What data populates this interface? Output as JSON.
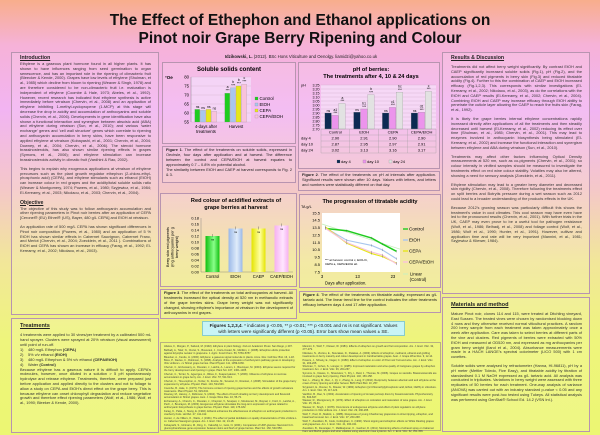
{
  "title": [
    "The Effect of Ethephon and Ethanol applications on",
    "Pinot noir Grape Berry Ripening and Colour"
  ],
  "author": {
    "name": "Idzikowski, L.",
    "rest": " (2012). BSc Hons Viticulture and Oenolgy. liamidzi@yahoo.co.uk"
  },
  "introduction": {
    "heading": "Introduction",
    "paragraphs": [
      "Ethylene is a gaseous plant hormone found in all higher plants. It has shown to have influences ranging from seed germination to organ senescence, and has an important role in the ripening of climacteric fruit (Bleecker & Kende, 2000). Grapes have low levels of ethylene (Shulman, et al., 1985) which decline from bloom to ripening (Weaver & Singh, 1978) and are therefore considered to be non-climacteric fruit i.e. maturation is independent of ethylene (Coombe & Hale, 1973; Abeles, et al., 1992). However, recent research has indicated that ethylene synthesis is active immediately before véraison (Chervin, et al., 2008) and an application of ethylene inhibiting 1-methyl-cyclopropene (1-MCP) at this stage will decrease the drop in acidity and accumulation of anthocyanins and soluble solids (Chervin, et al., 2006). Developments in gene identification have also shown a functional interaction and synergism between abscisic acid (ABA) and ethylene during véraison (Sun, et al., 2010); and various 'water exchange' genes and 'cell wall structure' genes which correlate to ripening and anthocyanin accumulation in berry skins, have been responsive to applied ethylene at véraison (Kobayashi, et al., 2001; Chervin, et al., 2004; Downey, et al., 2004; Chervin, et al., 2006). The steroid hormone brassinosteroids, has also shown similar ripening effects in grapes (Symons, et al., 2006); and ethylene stimulation can increase brassinosteroids activity in climatic fruit (Vardhini & Rao, 2002).",
      "This begins to explain why exogenous applications at véraison of ethylene precursors such as the plant growth regulator ethephon (2-chloro-ethyl-phosphonic acid) (CEPA), and ethylene stimulants such as ethanol (EtOH) can increase colour in red grapes and the acidity/total soluble solids ratio (Weaver & Montgomery, 1974; Powers, et al., 1980; Szyjewicz, et al., 1984; El-Kereamy, et al., 2003; Nikolaou, et al., 2003; Chervin, et al., 2004)."
    ]
  },
  "objective": {
    "heading": "Objective",
    "paragraphs": [
      "The objective of this study was to follow anthocyanin accumulation and other ripening parameters in Pinot noir berries after an application of CEPA [Ceronel® (EU) Ethrel® (US), Bayer, 480 g/L CEPA] and EtOH at véraison.",
      "An application rate of 500 mg/L CEPA has shown significant differences in Pinot noir composition (Powers, et al., 1980) and an application of 5 % EtOH has shown similar effects in Cabernet Sauvignon, Cabernet Franc, and Merlot (Chervin, et al., 2004; Zoecklein, et al., 2011 ). Combinations of EtOH and CEPA has shown an increase in efficacy (Farag, et al., 1992; El-Kereamy, et al., 2002; Nikolaou, et al., 2003)."
    ]
  },
  "treatments": {
    "heading": "Treatments",
    "intro": "4 treatments were applied to 30 vines/per treatment by a calibrated 500 mL hand sprayer. Clusters were sprayed at 20% véraison (visual assessment) until point of run-off.",
    "items": [
      {
        "n": "1)",
        "text": "480 mg/L Ethephon ",
        "bold": "(CEPA)"
      },
      {
        "n": "2)",
        "text": "5% v/v ethanol ",
        "bold": "(EtOH)"
      },
      {
        "n": "3)",
        "text": "480 mg/L Ethephon & 5% v/v ethanol ",
        "bold": "(CEPA/EtOH)"
      },
      {
        "n": "4)",
        "text": "Water ",
        "bold": "(Control)"
      }
    ],
    "outro": "Because ethylene has a gaseous nature it is difficult to apply. CEPA's molecules, however, once diluted in a solution > 5 pH spontaneously hydrolyse and release ethylene. Treatments, therefore, were prepared just before application and applied directly to the clusters and not to foliage to allow a study on CEPA and EtOH's direct effect on the grape berry. This is because ethylene can onset chlorophyll degradation and reduce vegetative growth and therefore effect ripening parameters (Wolf, et al., 1986; Wolf, et al., 1990; Bleeker & Kende, 2000)."
  },
  "results": {
    "heading": "Results & Discussion",
    "paragraphs": [
      "Treatments did not affect berry weight significantly. By contrast EtOH and CAEP significantly increased soluble solids (Fig.1), pH (Fig.2), and the accumulation of red pigments in berry skin (Fig.3) and reduced titratable acidity (Fig.4). Further to this the combination of CAEP and EtOH increased efficacy (Fig.1,2,3). This corresponds with similar investigations (El-Kereamy, et al., 2002; Nikolaou, et al., 2003), as do the correlations with the EtOH and CAEP results (El-Kereamy, et al., 2002; Chervin, et al., 2004). Combining EtOH and CAEP may increase efficacy through EtOH ability to penetrate the cuticle layer allowing the CAEP to reach the fruits skin (Farag, et al., 1992).",
      "It is likely the grape berries internal ethylene concentrations rapidly increased directly after applications of all the treatments and then steadily decreased until harvest (El-Kereamy, et al., 2002) reducing its effect over time (Shulman, et al., 1985; Chervin, et al., 2001). This may lead to enzymes involved in anthocyanin biosynthesis being stimulated (El-Kereamy, et al., 2002) and increase the functional interaction and synergism between ethylene and ABA during véraison (Sun, et al., 2010).",
      "Treatments may affect other factors influencing Optical Density measurements at 520 nm, such as co-pigments (Chervin, et al., 2001); so colour intensity in vinified samples should be measured to investigate the treatments effect on red wine colour stability. Volatiles may also be altered, showing a need for sensory analysis (Zoecklein, et al., 2011).",
      "Ethylene stimulation may lead to a greater berry diameter and decreased skin rigidity (Chervin, et al., 2008). Therefore following the treatments effect on split berries and Botrytis pressure during a wet season such as 2012 could lead to a broader understanding of the products effects in the UK.",
      "Because 2012's growing season was particularly difficult this shows the treatment's value in cool climates. This cool season may have even have led to the pronounced results (Chervin, et al., 2001). With further trials in the UK, CAEP may even prove to be a useful tool for pathogen resistance (Wolf, et al., 1986; Belhadj, et al., 2008) and foliage control (Wolf, et al., 1986; Wolf et al., 1990; Hunter, et al., 1991). However, cultivar and application time and rate will be very important (Mannini, et al., 1981; Szyjewicz & Kliewer, 1984)."
    ]
  },
  "materials": {
    "heading": "Materials and method",
    "paragraphs": [
      "Mature Pinot noir, clones 114 and 115, were treated at Ditchling vineyard, East Sussex. The treated vines were chosen by randomised blocking down 4 rows and they otherwise received normal viticultural practices. A random 200 berry sample from each treatment was taken approximately once a week after application. Care was taken to select berries at different parts of the vine and clusters. Red pigments of berries were extracted with 50% EtOH and measured at OD520 nm, and expressed as mg anthocyanins per gram berry weight (Iland et al., 2004). Absorbance measurements were made in a HACH LANGE's spectral colorimeter (LICO 500) with 1 cm cuvettes.",
      "Soluble solids were analysed by refractometer (Hanna, HI-96811), pH by a pH meter (Mettler Toledo, Five Easy), and titratable acidity by titration of standardised 0.1 M NaOH expressed as g/L tartaric acid. All analysis was conducted in triplicates. Variations in berry weight were assessed with three replicates of 50 berries for each treatment. One-way analysis of variance (ANOVA) was carried out with an industry standard p-value < 0.05 and any significant results were post-hoc tested using Tukeys. All statistical analysis was performed using GenStat® School Ed. 14.2 (VSN Int.)."
    ]
  },
  "captions": {
    "fig1": {
      "label": "Figure 1",
      "text": ". The effect of the treatments on soluble solids, expressed in Oechsle, four days after application and at harvest. The difference between the control and CEPA/EtOH at harvest equates to approximately 0.7 – 0.8% v/v potential alcohol.",
      "text2": "The similarity between EtOH and CAEP at harvest corresponds to Fig. 2 & 3."
    },
    "fig2": {
      "label": "Figure 2",
      "text": ". The effect of the treatments on pH at intervals after application. Significant results were shown after 10 days. Values with letters, and letters and numbers were statistically different on that day."
    },
    "fig3": {
      "label": "Figure 3",
      "text": ". The effect of the treatments on total anthocyanins at harvest. All treatments increased the optical density at 520 nm in methanolic extracts of the grape berries skins. Grape berry weight was not significantly changed, showing ethylene's importance at véraison in the development of anthocyanins in red grapes."
    },
    "fig4": {
      "label": "Figure 4",
      "text": ". The effect of the treatments on titratable acidity, expressed as g/L tartaric acid. The linear trend line for the control indicates the other treatments efficacy between days 4 and 17 after application."
    }
  },
  "footnote": {
    "label": "Figures 1,2,3,4",
    "text": ". * indicates p <0.05, ** p <0.01; *** p <0.001 and ns is not significant. Values with letters were significantly different (p <0.05). Error bars show mean values ± SE."
  },
  "references": [
    "Abeles, F., Morgan, P., Saltveit, M. (1992). Ethylene in plant biology. 2nd ed. Academic Press: San Diego, p 297.",
    "Belhadj, A., Telef, N., Cluzet, S., Bouscaut, J., Corio-Costet, M., Mérillon, J. (2008). Ethephon elicits protection against Erysiphe necator in grapevine. J. Agric. Food Chem. 56, 5781-5787.",
    "Bleecker, A., Kende, H. (2000). Ethylene: a gaseous signal molecule in plants. Annu. Rev. Cell Dev. Biol. 16, 1-18.",
    "Boss, P., Davies, C., Robinson, S. (1996). Analysis of the expression of anthocyanin pathway genes in developing Vitis vinifera L. cv Shiraz grape berries. Plant Physiol. 111, 1059-1066.",
    "Chervin, C., El-Kereamy, A., Roustan, J., Latché, A., Lamon, J., Bouzayen, M. (2004). Ethylene seems required for the berry development and ripening in grape. Plant Sci. 167, 1301-1305.",
    "Chervin, C., Terrier, N., Ageorges, A., Ribes, F., Kuapunyakoon, T. (2006). Influence of ethylene on sucrose accumulation in grape berry. Am. J. Enol. Vitic. 57, 511-513.",
    "Chervin, C., Tira-umphon, A., Terrier, N., Zouine, M., Severac, D., Roustan, J. (2008). Stimulation of the grape berry expansion by ethylene. Physiol. Plant. 134, 534-546.",
    "Coombe, B., Hale, C. (1973). The hormone content of ripening grape berries and the effects of growth substance treatments. Plant Physiol. 51, 629-634.",
    "Downey, M., Harvey, J., Robinson, S. (2004). The effect of bunch shading on berry development and flavonoid accumulation in Shiraz grapes. Aust. J. Grape Wine Res. 10, 55-73.",
    "El-Kereamy, A., Chervin, C., Roustan, J., Cheynier, V., Souquet, J., Moutounet, M., Raynal, J., Ford, C., Latché, A., Pech, J., Bouzayen, M. (2003). Exogenous ethylene stimulates the long-term expression of genes related to anthocyanin biosynthesis in grape berries. Physiol. Plant. 119, 175-182.",
    "Farag, K., Palta, J., Stang, E. (1992). Ethanol enhances the effectiveness of ethephon on anthocyanin production in cranberry fruits. HortSci. 27, 411-412.",
    "Hunter, J., de Villiers, O., Watts, J. (1991). The effect of partial defoliation on quality characteristics of Vitis vinifera L. cv. Cabernet Sauvignon grapes. Am. J. Enol. Vitic. 42, 13-18.",
    "Kobayashi, S., Ishimaru, M., Ding, C., Yakushiji, H., Goto, N. (2001). Comparison of UDP-glucose: flavonoid 3-O-glucosyltransferase gene expression between skins and flesh of grape berries. Plant Sci. 160, 543-550.",
    "Mannini, F., Wolf, T., Kliewer, W. (1981). Effects of ethephon on growth and fruit composition. Am. J. Enol. Vitic. 32, 277-279.",
    "Nikolaou, N., Zioziou, E., Stavrakas, D., Patakas, A. (2003). Effects of ethephon, methanol, ethanol and girdling treatments on berry maturity and colour development in Cardinal table grapes. Aust. J. Grape Wine Res. 9, 12-14.",
    "Powers, J., Shively, E., Nagel, C. (1980). Effect of ethephon on color of Pinot noir fruit and wine. Am. J. Enol. Vitic. 31, 203-205.",
    "Shulman, Y., Cohen, S., Loinger, C. (1985). Improved maturation and wine quality of Carignane grapes by ethephon treatment. Am. J. Enol. Vitic. 36, 264-267.",
    "Symons, G., Davies, C., Shavrukov, Y., Dry, I., Reid, J., Thomas, M. (2006). Grapes on steroids. Brassinosteroids are involved in grape berry ripening. Plant Physiol. 140, 150-158.",
    "Sun, L., Zhang, M., Ren, J., Qi, J., Zhang, G., Leng, P. (2010). Reciprocity between abscisic acid and ethylene at the onset of berry ripening and after harvest. BMC Plant Biol. 10, 257.",
    "Szyjewicz, E., Rosner, N., Kliewer, W. (1984). Ethephon ((2-Chloroethyl)phosphonic acid, Ethrel, CEPA) in viticulture. Am. J. Enol. Vitic. 35, 117-123.",
    "Vardhini, B., Rao, S. (2002). Acceleration of ripening of tomato pericarp discs by brassinosteroids. Phytochemistry 61, 843-847.",
    "Weaver, R., Montgomery, R. (1974). Effect of ethephon on coloration and maturation of wine grapes. Am. J. Enol. Vitic. 25, 39-41.",
    "Weaver, R., Singh, I. (1978). Occurrence of endogenous ethylene and effect of plant regulators on ethylene production in Vitis vinifera. Am. J. Enol. Vitic. 29, 290-295.",
    "Wolf, T., Pool, R., Mattick, L. (1986). Responses of young Chardonnay grapevines to shoot tipping, ethephon, and basal leaf removal. Am. J. Enol. Vitic. 37, 263-268.",
    "Wolf, T., Zoecklein, B., Cook, Cottingham, C. (1990). Shoot topping and ethephon effects on White Riesling grapes and grapevines. Am. J. Enol. Vitic. 41, 330-341.",
    "Zoecklein, B., Devarajan, Y., Mallikarjunan, K., Gardner, D. (2011). Monitoring effects of ethanol spray on Cabernet franc and Merlot grapes and wine volatiles using electronic nose systems. Am. J. Enol. Vitic. 62, 351-358."
  ],
  "colors": {
    "Control": "#1fcc1f",
    "EtOH": "#a9c6ee",
    "CEPA": "#e6e61c",
    "CEPA/EtOH": "#f9c2dc",
    "day4": "#0b2a52",
    "day10": "#ec94ec",
    "day24": "#e2e2e2",
    "linear": "#c8f0c0"
  },
  "chart_data": [
    {
      "type": "bar",
      "title": "Soluble solids content",
      "ylabel": "°Oe",
      "ylim": [
        55,
        80
      ],
      "yticks": [
        55,
        60,
        65,
        70,
        75,
        80
      ],
      "categories": [
        "4-days after treatments",
        "Harvest"
      ],
      "series": [
        {
          "name": "Control",
          "values": [
            62,
            71
          ],
          "labels": [
            "ns",
            "a ***"
          ]
        },
        {
          "name": "EtOH",
          "values": [
            61.5,
            74
          ],
          "labels": [
            "ns",
            "b ***"
          ]
        },
        {
          "name": "CEPA",
          "values": [
            62,
            75
          ],
          "labels": [
            "ns",
            "b ***"
          ]
        },
        {
          "name": "CEPA/EtOH",
          "values": [
            61,
            76
          ],
          "labels": [
            "ns",
            "c ***"
          ]
        }
      ],
      "legend": "right",
      "grid": true
    },
    {
      "type": "bar",
      "title": "pH of berries:",
      "subtitle": "The treatments after 4, 10 & 24 days",
      "ylabel": "pH",
      "ylim": [
        2.7,
        3.25
      ],
      "yticks": [
        "3.25",
        "3.20",
        "3.15",
        "3.10",
        "3.05",
        "3.00",
        "2.95",
        "2.90",
        "2.85",
        "2.80",
        "2.75",
        "2.70"
      ],
      "categories": [
        "Control",
        "EtOH",
        "CEPA",
        "CEPA/EtOH"
      ],
      "series": [
        {
          "name": "day 4",
          "values": [
            2.9,
            2.91,
            2.9,
            2.9
          ],
          "labels": [
            "ns",
            "ns",
            "ns",
            "ns"
          ]
        },
        {
          "name": "day 10",
          "values": [
            2.87,
            2.95,
            2.97,
            2.91
          ],
          "labels": [
            "a1 ***",
            "b1 ***",
            "c1 ***",
            "d1 ***"
          ]
        },
        {
          "name": "day 24",
          "values": [
            3.02,
            3.13,
            3.16,
            3.17
          ],
          "labels": [
            "a ***",
            "b ***",
            "bc ***",
            "c ***"
          ]
        }
      ],
      "table": {
        "rows": [
          {
            "label": "day 4",
            "values": [
              "2.90",
              "2.91",
              "2.90",
              "2.90"
            ]
          },
          {
            "label": "day 10",
            "values": [
              "2.87",
              "2.95",
              "2.97",
              "2.91"
            ]
          },
          {
            "label": "day 24",
            "values": [
              "3.02",
              "3.13",
              "3.16",
              "3.17"
            ]
          }
        ]
      },
      "legend": "bottom",
      "grid": true
    },
    {
      "type": "bar",
      "title": "Red colour of acidified extracts of",
      "subtitle": "grape berries at harvest",
      "ylabel": "Berry skin red pigments (mg anthocyanins per g berry weight)",
      "ylim": [
        0,
        0.18
      ],
      "yticks": [
        "0.18",
        "0.16",
        "0.14",
        "0.12",
        "0.10",
        "0.08",
        "0.06",
        "0.04",
        "0.02",
        "0.00"
      ],
      "categories": [
        "Control",
        "EtOH",
        "CAEP",
        "CAEP/EtOH"
      ],
      "values": [
        0.12,
        0.145,
        0.145,
        0.155
      ],
      "labels": [
        "ns",
        "ns",
        "ns",
        "ns"
      ]
    },
    {
      "type": "line",
      "title": "The progression of titratable acidity",
      "ylabel": "TA g/L",
      "xlabel": "Days after application.",
      "ylim": [
        7.5,
        15.5
      ],
      "xlim": [
        3,
        25
      ],
      "yticks": [
        "15.5",
        "14.5",
        "13.5",
        "12.5",
        "11.5",
        "10.5",
        "9.5",
        "8.5",
        "7.5"
      ],
      "xticks": [
        "3",
        "13",
        "23"
      ],
      "x": [
        4,
        10,
        17,
        20,
        24
      ],
      "series": [
        {
          "name": "Control",
          "values": [
            13.4,
            13.1,
            12.1,
            11.3,
            10.3
          ]
        },
        {
          "name": "EtOH",
          "values": [
            13.5,
            11.8,
            11.1,
            10.5,
            9.3
          ]
        },
        {
          "name": "CEPA",
          "values": [
            13.6,
            11.4,
            10.0,
            9.6,
            8.7
          ]
        },
        {
          "name": "CEPA/EtOH",
          "values": [
            13.4,
            11.5,
            10.2,
            9.8,
            8.6
          ]
        }
      ],
      "trend": {
        "name": "Linear (Control)",
        "from": [
          3,
          14.0
        ],
        "to": [
          25,
          10.6
        ]
      },
      "annotation": "*** at harvest: control c, EtOH b, CEPA a, CEPA/EtOH ab",
      "legend": "right"
    }
  ]
}
